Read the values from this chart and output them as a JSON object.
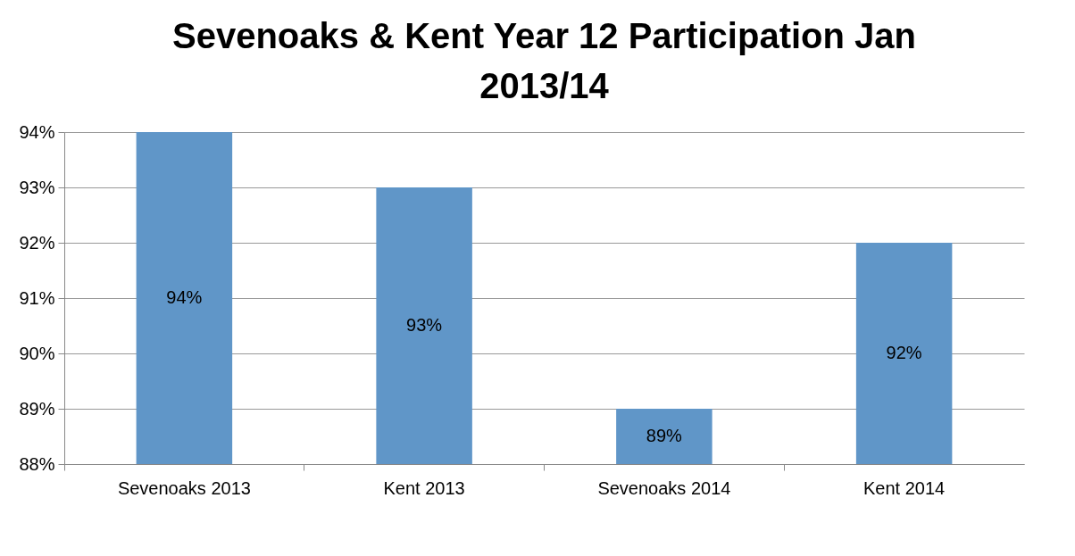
{
  "chart_data": {
    "type": "bar",
    "title": "Sevenoaks & Kent Year 12 Participation Jan 2013/14",
    "categories": [
      "Sevenoaks 2013",
      "Kent 2013",
      "Sevenoaks 2014",
      "Kent 2014"
    ],
    "values": [
      94,
      93,
      89,
      92
    ],
    "value_labels": [
      "94%",
      "93%",
      "89%",
      "92%"
    ],
    "color": "#6096c8",
    "ylim": [
      88,
      94
    ],
    "yticks": [
      {
        "value": 88,
        "label": "88%"
      },
      {
        "value": 89,
        "label": "89%"
      },
      {
        "value": 90,
        "label": "90%"
      },
      {
        "value": 91,
        "label": "91%"
      },
      {
        "value": 92,
        "label": "92%"
      },
      {
        "value": 93,
        "label": "93%"
      },
      {
        "value": 94,
        "label": "94%"
      }
    ],
    "grid": "y"
  }
}
